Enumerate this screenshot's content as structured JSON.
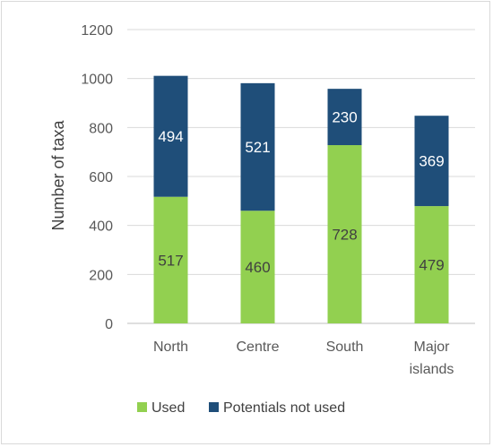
{
  "chart_data": {
    "type": "bar",
    "stacked": true,
    "title": "",
    "xlabel": "",
    "ylabel": "Number of taxa",
    "ylim": [
      0,
      1200
    ],
    "yticks": [
      0,
      200,
      400,
      600,
      800,
      1000,
      1200
    ],
    "grid": true,
    "legend_position": "bottom",
    "categories": [
      [
        "North"
      ],
      [
        "Centre"
      ],
      [
        "South"
      ],
      [
        "Major",
        "islands"
      ]
    ],
    "series": [
      {
        "name": "Used",
        "color": "#92d050",
        "values": [
          517,
          460,
          728,
          479
        ]
      },
      {
        "name": "Potentials not used",
        "color": "#1f4e79",
        "values": [
          494,
          521,
          230,
          369
        ]
      }
    ]
  }
}
